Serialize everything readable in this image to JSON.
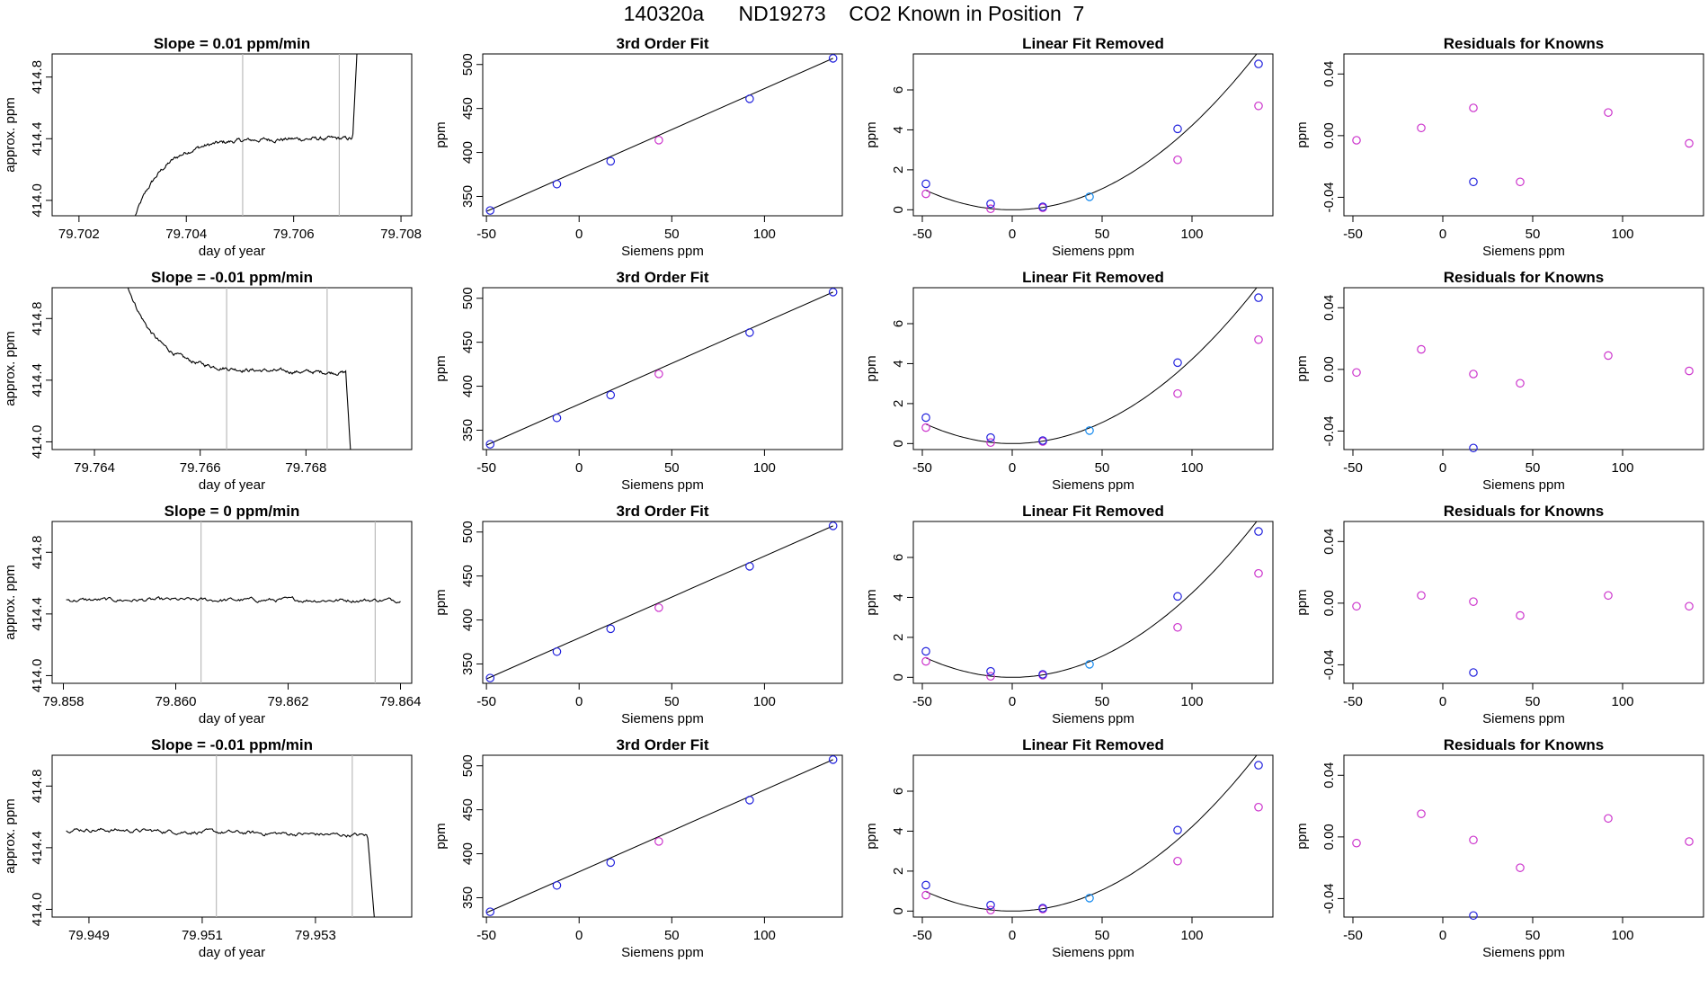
{
  "figure": {
    "title": "140320a      ND19273    CO2 Known in Position  7"
  },
  "colors": {
    "axis": "#000000",
    "line": "#000000",
    "vline": "#bbbbbb",
    "blue": "#2222dd",
    "magenta": "#cc33cc",
    "cyan": "#1188ee"
  },
  "chart_data": [
    {
      "type": "line",
      "title": "Slope =  0.01  ppm/min",
      "xlabel": "day of year",
      "ylabel": "approx. ppm",
      "xlim": [
        79.7015,
        79.7082
      ],
      "ylim": [
        413.9,
        414.95
      ],
      "xticks": [
        79.702,
        79.704,
        79.706,
        79.708
      ],
      "xtick_labels": [
        "79.702",
        "79.704",
        "79.706",
        "79.708"
      ],
      "yticks": [
        414.0,
        414.4,
        414.8
      ],
      "ytick_labels": [
        "414.0",
        "414.4",
        "414.8"
      ],
      "vlines": [
        79.70505,
        79.70685
      ],
      "series": [
        {
          "shape": "rise",
          "x_start": 79.70305,
          "x_end": 79.7072,
          "x_rise": 79.7071,
          "start": 413.9,
          "plateau": 414.4,
          "end": 415.1,
          "noise": 0.012
        }
      ]
    },
    {
      "type": "line",
      "title": "3rd Order Fit",
      "xlabel": "Siemens ppm",
      "ylabel": "ppm",
      "xlim": [
        -52,
        142
      ],
      "ylim": [
        328,
        512
      ],
      "xticks": [
        -50,
        0,
        50,
        100
      ],
      "xtick_labels": [
        "-50",
        "0",
        "50",
        "100"
      ],
      "yticks": [
        350,
        400,
        450,
        500
      ],
      "ytick_labels": [
        "350",
        "400",
        "450",
        "500"
      ],
      "line": [
        [
          -50,
          333
        ],
        [
          137,
          507
        ]
      ],
      "points_blue": [
        [
          -48,
          334
        ],
        [
          -12,
          364
        ],
        [
          17,
          390
        ],
        [
          92,
          461
        ],
        [
          137,
          507
        ]
      ],
      "points_magenta": [
        [
          43,
          414
        ]
      ]
    },
    {
      "type": "scatter",
      "title": "Linear Fit Removed",
      "xlabel": "Siemens ppm",
      "ylabel": "ppm",
      "xlim": [
        -55,
        145
      ],
      "ylim": [
        -0.3,
        7.8
      ],
      "xticks": [
        -50,
        0,
        50,
        100
      ],
      "xtick_labels": [
        "-50",
        "0",
        "50",
        "100"
      ],
      "yticks": [
        0,
        2,
        4,
        6
      ],
      "ytick_labels": [
        "0",
        "2",
        "4",
        "6"
      ],
      "curve": {
        "x_from": -48,
        "x_to": 137,
        "vertex_x": 0,
        "vertex_y": 0,
        "k": 0.000422
      },
      "points_blue": [
        [
          -48,
          1.3
        ],
        [
          -12,
          0.3
        ],
        [
          17,
          0.15
        ],
        [
          92,
          4.05
        ],
        [
          137,
          7.3
        ]
      ],
      "points_magenta": [
        [
          -48,
          0.8
        ],
        [
          -12,
          0.05
        ],
        [
          17,
          0.1
        ],
        [
          92,
          2.5
        ],
        [
          137,
          5.2
        ]
      ],
      "points_cyan": [
        [
          43,
          0.65
        ]
      ]
    },
    {
      "type": "scatter",
      "title": "Residuals for Knowns",
      "xlabel": "Siemens ppm",
      "ylabel": "ppm",
      "xlim": [
        -55,
        145
      ],
      "ylim": [
        -0.052,
        0.053
      ],
      "xticks": [
        -50,
        0,
        50,
        100
      ],
      "xtick_labels": [
        "-50",
        "0",
        "50",
        "100"
      ],
      "yticks": [
        -0.04,
        0.0,
        0.04
      ],
      "ytick_labels": [
        "-0.04",
        "0.00",
        "0.04"
      ],
      "points_blue": [
        [
          17,
          -0.03
        ]
      ],
      "points_magenta": [
        [
          -48,
          -0.003
        ],
        [
          -12,
          0.005
        ],
        [
          17,
          0.018
        ],
        [
          43,
          -0.03
        ],
        [
          92,
          0.015
        ],
        [
          137,
          -0.005
        ]
      ]
    },
    {
      "type": "line",
      "title": "Slope =  -0.01  ppm/min",
      "xlabel": "day of year",
      "ylabel": "approx. ppm",
      "xlim": [
        79.7632,
        79.77
      ],
      "ylim": [
        413.95,
        415.0
      ],
      "xticks": [
        79.764,
        79.766,
        79.768
      ],
      "xtick_labels": [
        "79.764",
        "79.766",
        "79.768"
      ],
      "yticks": [
        414.0,
        414.4,
        414.8
      ],
      "ytick_labels": [
        "414.0",
        "414.4",
        "414.8"
      ],
      "vlines": [
        79.7665,
        79.7684
      ],
      "series": [
        {
          "shape": "fall",
          "x_start": 79.7646,
          "x_end": 79.76885,
          "x_drop": 79.76875,
          "start": 415.05,
          "plateau": 414.47,
          "slope": -0.02,
          "end": 413.9,
          "noise": 0.011
        }
      ]
    },
    {
      "type": "line",
      "title": "3rd Order Fit",
      "xlabel": "Siemens ppm",
      "ylabel": "ppm",
      "xlim": [
        -52,
        142
      ],
      "ylim": [
        328,
        512
      ],
      "xticks": [
        -50,
        0,
        50,
        100
      ],
      "xtick_labels": [
        "-50",
        "0",
        "50",
        "100"
      ],
      "yticks": [
        350,
        400,
        450,
        500
      ],
      "ytick_labels": [
        "350",
        "400",
        "450",
        "500"
      ],
      "line": [
        [
          -50,
          333
        ],
        [
          137,
          507
        ]
      ],
      "points_blue": [
        [
          -48,
          334
        ],
        [
          -12,
          364
        ],
        [
          17,
          390
        ],
        [
          92,
          461
        ],
        [
          137,
          507
        ]
      ],
      "points_magenta": [
        [
          43,
          414
        ]
      ]
    },
    {
      "type": "scatter",
      "title": "Linear Fit Removed",
      "xlabel": "Siemens ppm",
      "ylabel": "ppm",
      "xlim": [
        -55,
        145
      ],
      "ylim": [
        -0.3,
        7.8
      ],
      "xticks": [
        -50,
        0,
        50,
        100
      ],
      "xtick_labels": [
        "-50",
        "0",
        "50",
        "100"
      ],
      "yticks": [
        0,
        2,
        4,
        6
      ],
      "ytick_labels": [
        "0",
        "2",
        "4",
        "6"
      ],
      "curve": {
        "x_from": -48,
        "x_to": 137,
        "vertex_x": 0,
        "vertex_y": 0,
        "k": 0.000422
      },
      "points_blue": [
        [
          -48,
          1.3
        ],
        [
          -12,
          0.3
        ],
        [
          17,
          0.15
        ],
        [
          92,
          4.05
        ],
        [
          137,
          7.3
        ]
      ],
      "points_magenta": [
        [
          -48,
          0.8
        ],
        [
          -12,
          0.05
        ],
        [
          17,
          0.1
        ],
        [
          92,
          2.5
        ],
        [
          137,
          5.2
        ]
      ],
      "points_cyan": [
        [
          43,
          0.65
        ]
      ]
    },
    {
      "type": "scatter",
      "title": "Residuals for Knowns",
      "xlabel": "Siemens ppm",
      "ylabel": "ppm",
      "xlim": [
        -55,
        145
      ],
      "ylim": [
        -0.052,
        0.053
      ],
      "xticks": [
        -50,
        0,
        50,
        100
      ],
      "xtick_labels": [
        "-50",
        "0",
        "50",
        "100"
      ],
      "yticks": [
        -0.04,
        0.0,
        0.04
      ],
      "ytick_labels": [
        "-0.04",
        "0.00",
        "0.04"
      ],
      "points_blue": [
        [
          17,
          -0.051
        ]
      ],
      "points_magenta": [
        [
          -48,
          -0.002
        ],
        [
          -12,
          0.013
        ],
        [
          17,
          -0.003
        ],
        [
          43,
          -0.009
        ],
        [
          92,
          0.009
        ],
        [
          137,
          -0.001
        ]
      ]
    },
    {
      "type": "line",
      "title": "Slope =  0  ppm/min",
      "xlabel": "day of year",
      "ylabel": "approx. ppm",
      "xlim": [
        79.8578,
        79.8642
      ],
      "ylim": [
        413.95,
        415.0
      ],
      "xticks": [
        79.858,
        79.86,
        79.862,
        79.864
      ],
      "xtick_labels": [
        "79.858",
        "79.860",
        "79.862",
        "79.864"
      ],
      "yticks": [
        414.0,
        414.4,
        414.8
      ],
      "ytick_labels": [
        "414.0",
        "414.4",
        "414.8"
      ],
      "vlines": [
        79.86045,
        79.86355
      ],
      "series": [
        {
          "shape": "flat",
          "x_start": 79.85805,
          "x_end": 79.864,
          "plateau": 414.49,
          "noise": 0.012
        }
      ]
    },
    {
      "type": "line",
      "title": "3rd Order Fit",
      "xlabel": "Siemens ppm",
      "ylabel": "ppm",
      "xlim": [
        -52,
        142
      ],
      "ylim": [
        328,
        512
      ],
      "xticks": [
        -50,
        0,
        50,
        100
      ],
      "xtick_labels": [
        "-50",
        "0",
        "50",
        "100"
      ],
      "yticks": [
        350,
        400,
        450,
        500
      ],
      "ytick_labels": [
        "350",
        "400",
        "450",
        "500"
      ],
      "line": [
        [
          -50,
          333
        ],
        [
          137,
          507
        ]
      ],
      "points_blue": [
        [
          -48,
          334
        ],
        [
          -12,
          364
        ],
        [
          17,
          390
        ],
        [
          92,
          461
        ],
        [
          137,
          507
        ]
      ],
      "points_magenta": [
        [
          43,
          414
        ]
      ]
    },
    {
      "type": "scatter",
      "title": "Linear Fit Removed",
      "xlabel": "Siemens ppm",
      "ylabel": "ppm",
      "xlim": [
        -55,
        145
      ],
      "ylim": [
        -0.3,
        7.8
      ],
      "xticks": [
        -50,
        0,
        50,
        100
      ],
      "xtick_labels": [
        "-50",
        "0",
        "50",
        "100"
      ],
      "yticks": [
        0,
        2,
        4,
        6
      ],
      "ytick_labels": [
        "0",
        "2",
        "4",
        "6"
      ],
      "curve": {
        "x_from": -48,
        "x_to": 137,
        "vertex_x": 0,
        "vertex_y": 0,
        "k": 0.000422
      },
      "points_blue": [
        [
          -48,
          1.3
        ],
        [
          -12,
          0.3
        ],
        [
          17,
          0.15
        ],
        [
          92,
          4.05
        ],
        [
          137,
          7.3
        ]
      ],
      "points_magenta": [
        [
          -48,
          0.8
        ],
        [
          -12,
          0.05
        ],
        [
          17,
          0.1
        ],
        [
          92,
          2.5
        ],
        [
          137,
          5.2
        ]
      ],
      "points_cyan": [
        [
          43,
          0.65
        ]
      ]
    },
    {
      "type": "scatter",
      "title": "Residuals for Knowns",
      "xlabel": "Siemens ppm",
      "ylabel": "ppm",
      "xlim": [
        -55,
        145
      ],
      "ylim": [
        -0.052,
        0.053
      ],
      "xticks": [
        -50,
        0,
        50,
        100
      ],
      "xtick_labels": [
        "-50",
        "0",
        "50",
        "100"
      ],
      "yticks": [
        -0.04,
        0.0,
        0.04
      ],
      "ytick_labels": [
        "-0.04",
        "0.00",
        "0.04"
      ],
      "points_blue": [
        [
          17,
          -0.045
        ]
      ],
      "points_magenta": [
        [
          -48,
          -0.002
        ],
        [
          -12,
          0.005
        ],
        [
          17,
          0.001
        ],
        [
          43,
          -0.008
        ],
        [
          92,
          0.005
        ],
        [
          137,
          -0.002
        ]
      ]
    },
    {
      "type": "line",
      "title": "Slope =  -0.01  ppm/min",
      "xlabel": "day of year",
      "ylabel": "approx. ppm",
      "xlim": [
        79.94835,
        79.9547
      ],
      "ylim": [
        413.95,
        415.0
      ],
      "xticks": [
        79.949,
        79.951,
        79.953
      ],
      "xtick_labels": [
        "79.949",
        "79.951",
        "79.953"
      ],
      "yticks": [
        414.0,
        414.4,
        414.8
      ],
      "ytick_labels": [
        "414.0",
        "414.4",
        "414.8"
      ],
      "vlines": [
        79.95125,
        79.95365
      ],
      "series": [
        {
          "shape": "flat_drop",
          "x_start": 79.9486,
          "x_end": 79.95405,
          "x_drop": 79.95392,
          "start": 414.52,
          "plateau": 414.48,
          "end": 413.9,
          "noise": 0.012
        }
      ]
    },
    {
      "type": "line",
      "title": "3rd Order Fit",
      "xlabel": "Siemens ppm",
      "ylabel": "ppm",
      "xlim": [
        -52,
        142
      ],
      "ylim": [
        328,
        512
      ],
      "xticks": [
        -50,
        0,
        50,
        100
      ],
      "xtick_labels": [
        "-50",
        "0",
        "50",
        "100"
      ],
      "yticks": [
        350,
        400,
        450,
        500
      ],
      "ytick_labels": [
        "350",
        "400",
        "450",
        "500"
      ],
      "line": [
        [
          -50,
          333
        ],
        [
          137,
          507
        ]
      ],
      "points_blue": [
        [
          -48,
          334
        ],
        [
          -12,
          364
        ],
        [
          17,
          390
        ],
        [
          92,
          461
        ],
        [
          137,
          507
        ]
      ],
      "points_magenta": [
        [
          43,
          414
        ]
      ]
    },
    {
      "type": "scatter",
      "title": "Linear Fit Removed",
      "xlabel": "Siemens ppm",
      "ylabel": "ppm",
      "xlim": [
        -55,
        145
      ],
      "ylim": [
        -0.3,
        7.8
      ],
      "xticks": [
        -50,
        0,
        50,
        100
      ],
      "xtick_labels": [
        "-50",
        "0",
        "50",
        "100"
      ],
      "yticks": [
        0,
        2,
        4,
        6
      ],
      "ytick_labels": [
        "0",
        "2",
        "4",
        "6"
      ],
      "curve": {
        "x_from": -48,
        "x_to": 137,
        "vertex_x": 0,
        "vertex_y": 0,
        "k": 0.000422
      },
      "points_blue": [
        [
          -48,
          1.3
        ],
        [
          -12,
          0.3
        ],
        [
          17,
          0.15
        ],
        [
          92,
          4.05
        ],
        [
          137,
          7.3
        ]
      ],
      "points_magenta": [
        [
          -48,
          0.8
        ],
        [
          -12,
          0.05
        ],
        [
          17,
          0.1
        ],
        [
          92,
          2.5
        ],
        [
          137,
          5.2
        ]
      ],
      "points_cyan": [
        [
          43,
          0.65
        ]
      ]
    },
    {
      "type": "scatter",
      "title": "Residuals for Knowns",
      "xlabel": "Siemens ppm",
      "ylabel": "ppm",
      "xlim": [
        -55,
        145
      ],
      "ylim": [
        -0.052,
        0.053
      ],
      "xticks": [
        -50,
        0,
        50,
        100
      ],
      "xtick_labels": [
        "-50",
        "0",
        "50",
        "100"
      ],
      "yticks": [
        -0.04,
        0.0,
        0.04
      ],
      "ytick_labels": [
        "-0.04",
        "0.00",
        "0.04"
      ],
      "points_blue": [
        [
          17,
          -0.051
        ]
      ],
      "points_magenta": [
        [
          -48,
          -0.004
        ],
        [
          -12,
          0.015
        ],
        [
          17,
          -0.002
        ],
        [
          43,
          -0.02
        ],
        [
          92,
          0.012
        ],
        [
          137,
          -0.003
        ]
      ]
    }
  ]
}
